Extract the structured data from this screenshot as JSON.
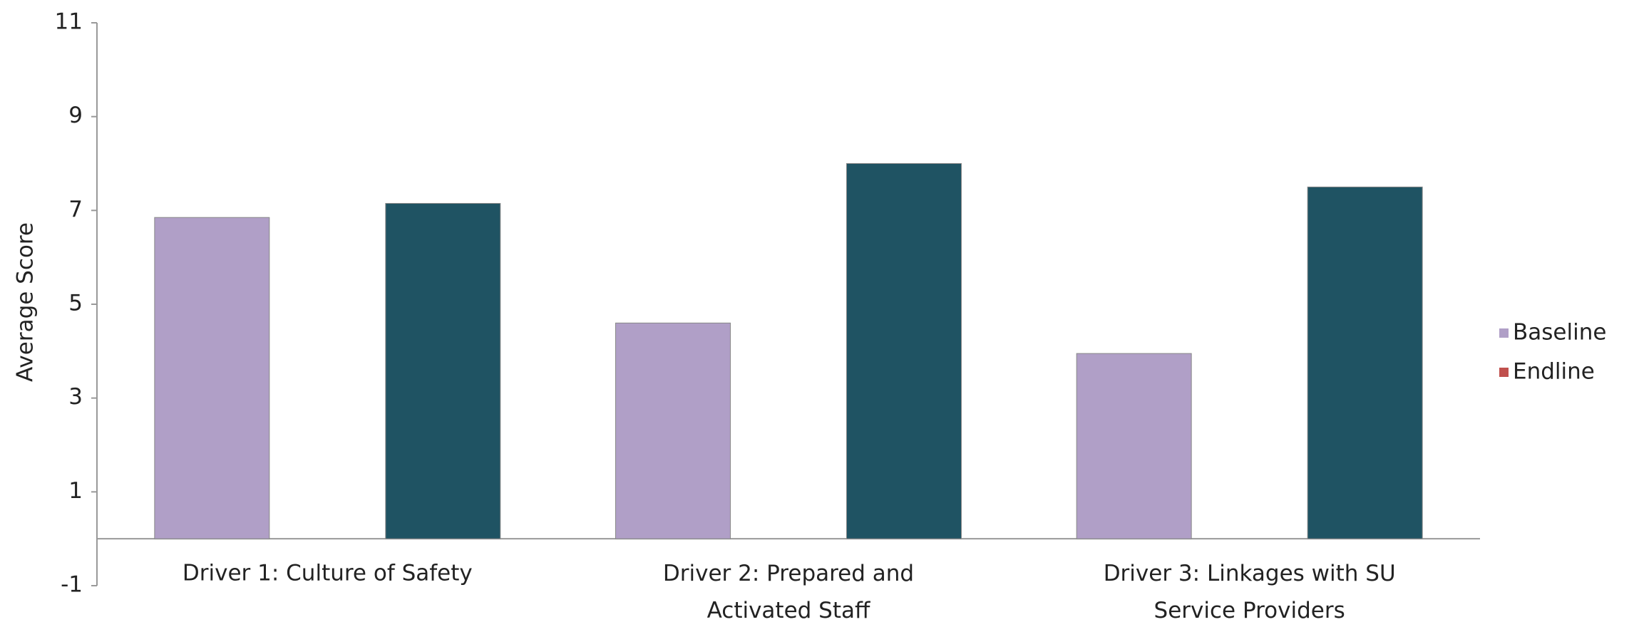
{
  "chart_data": {
    "type": "bar",
    "y_label": "Average Score",
    "categories": [
      "Driver 1: Culture of Safety",
      "Driver 2: Prepared and Activated Staff",
      "Driver 3: Linkages with SU Service Providers"
    ],
    "series": [
      {
        "name": "Baseline",
        "color": "#b09fc7",
        "legend_color": "#b09fc7",
        "values": [
          6.85,
          4.6,
          3.95
        ]
      },
      {
        "name": "Endline",
        "color": "#1f5363",
        "legend_color": "#c0504d",
        "values": [
          7.15,
          8.0,
          7.5
        ]
      }
    ],
    "ylim": [
      -1,
      11
    ],
    "yticks": [
      -1,
      1,
      3,
      5,
      7,
      9,
      11
    ],
    "grid": false
  }
}
